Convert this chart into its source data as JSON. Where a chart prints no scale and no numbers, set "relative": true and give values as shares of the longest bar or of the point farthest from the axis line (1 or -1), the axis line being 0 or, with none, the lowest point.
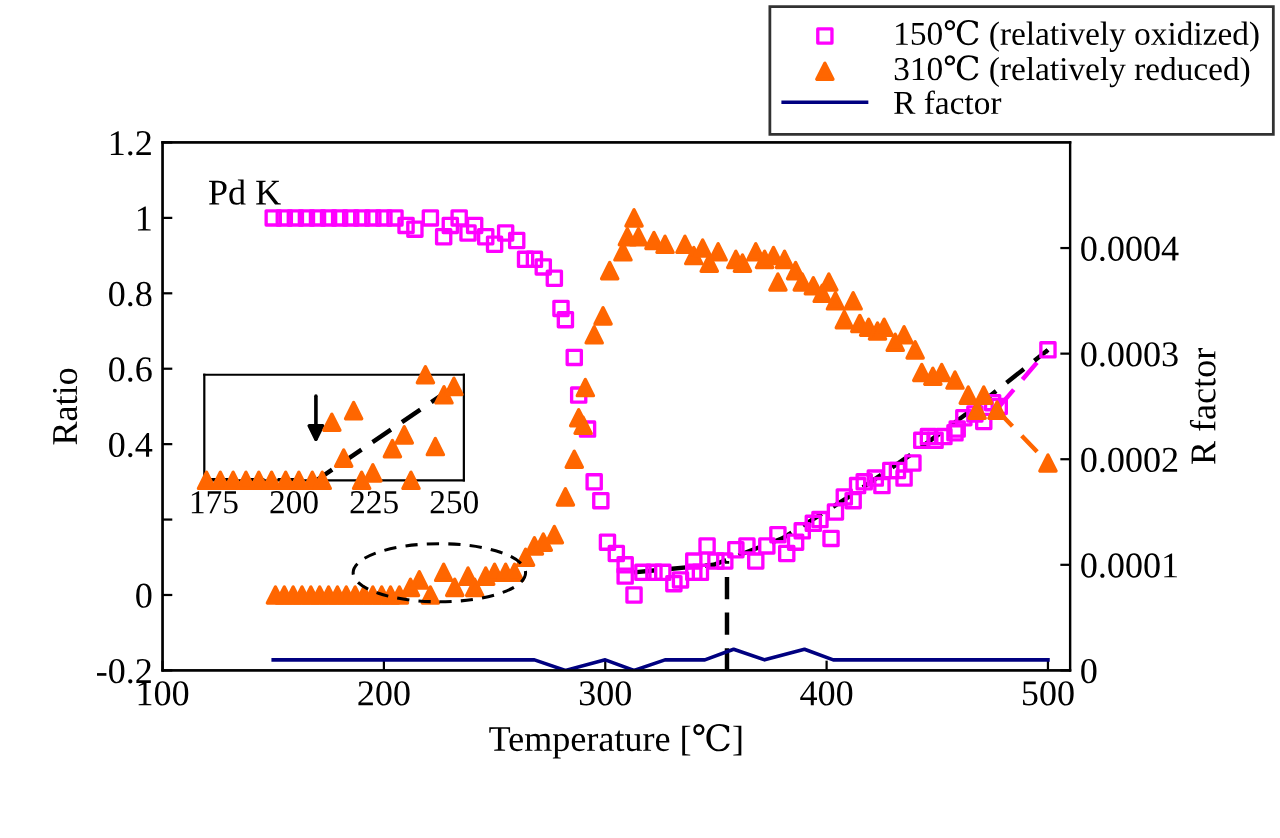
{
  "chart_data": [
    {
      "type": "scatter",
      "xlabel": "Temperature [℃]",
      "ylabel": "Ratio",
      "y2label": "R factor",
      "annotations": [
        "Pd K"
      ],
      "xlim": [
        100,
        510
      ],
      "xticks": [
        100,
        200,
        300,
        400,
        500
      ],
      "ylim": [
        -0.2,
        1.2
      ],
      "yticks": [
        -0.2,
        0,
        {
          "value": 0.2,
          "label": null
        },
        0.4,
        0.6,
        0.8,
        1,
        1.2
      ],
      "y2lim": [
        0,
        0.0005
      ],
      "y2ticks": [
        0,
        0.0001,
        0.0002,
        0.0003,
        0.0004
      ],
      "grid": false,
      "legend": "top right",
      "series": [
        {
          "name": "150℃ (relatively oxidized)",
          "type": "scatter",
          "marker": "square",
          "color": "#ff00ff",
          "x": [
            150,
            155,
            160,
            165,
            170,
            175,
            180,
            185,
            190,
            195,
            200,
            205,
            210,
            214,
            221,
            227,
            230,
            234,
            238,
            241,
            246,
            250,
            255,
            260,
            264,
            268,
            272,
            277,
            280,
            282,
            286,
            288,
            292,
            295,
            298,
            301,
            305,
            309,
            309,
            313,
            317,
            322,
            326,
            331,
            334,
            340,
            340,
            343,
            346,
            350,
            354,
            359,
            364,
            368,
            373,
            378,
            382,
            386,
            389,
            394,
            397,
            402,
            404,
            408,
            412,
            414,
            417,
            422,
            425,
            429,
            432,
            435,
            439,
            443,
            446,
            449,
            453,
            458,
            459,
            462,
            467,
            471,
            475,
            478,
            500
          ],
          "values": [
            1,
            1,
            1,
            1,
            1,
            1,
            1,
            1,
            1,
            1,
            1,
            1,
            0.98,
            0.97,
            1.0,
            0.95,
            0.98,
            1.0,
            0.96,
            0.98,
            0.95,
            0.93,
            0.96,
            0.94,
            0.89,
            0.89,
            0.87,
            0.84,
            0.76,
            0.73,
            0.63,
            0.53,
            0.44,
            0.3,
            0.25,
            0.14,
            0.11,
            0.08,
            0.05,
            0.0,
            0.06,
            0.06,
            0.06,
            0.03,
            0.04,
            0.06,
            0.09,
            0.06,
            0.13,
            0.09,
            0.09,
            0.12,
            0.13,
            0.09,
            0.13,
            0.16,
            0.11,
            0.14,
            0.17,
            0.19,
            0.2,
            0.15,
            0.22,
            0.26,
            0.25,
            0.29,
            0.3,
            0.31,
            0.29,
            0.33,
            0.33,
            0.31,
            0.35,
            0.41,
            0.42,
            0.41,
            0.42,
            0.43,
            0.44,
            0.47,
            0.48,
            0.46,
            0.51,
            0.5,
            0.65
          ]
        },
        {
          "name": "310℃ (relatively reduced)",
          "type": "scatter",
          "marker": "triangle",
          "color": "#ff6600",
          "x": [
            151,
            155,
            159,
            163,
            167,
            171,
            175,
            179,
            183,
            187,
            191,
            195,
            199,
            203,
            207,
            212,
            216,
            221,
            227,
            232,
            238,
            241,
            246,
            250,
            255,
            259,
            264,
            268,
            272,
            277,
            282,
            286,
            288,
            290,
            291,
            295,
            299,
            302,
            308,
            310,
            313,
            315,
            322,
            327,
            336,
            340,
            344,
            347,
            351,
            359,
            362,
            368,
            372,
            376,
            378,
            381,
            386,
            389,
            394,
            398,
            401,
            404,
            408,
            412,
            415,
            419,
            423,
            426,
            431,
            435,
            440,
            443,
            448,
            452,
            458,
            464,
            468,
            471,
            477,
            500
          ],
          "values": [
            0,
            0,
            0,
            0,
            0,
            0,
            0,
            0,
            0,
            0,
            0,
            0,
            0,
            0,
            0,
            0.02,
            0.04,
            0.0,
            0.06,
            0.02,
            0.05,
            0.02,
            0.05,
            0.06,
            0.06,
            0.06,
            0.1,
            0.13,
            0.14,
            0.16,
            0.26,
            0.36,
            0.47,
            0.45,
            0.55,
            0.69,
            0.74,
            0.86,
            0.91,
            0.95,
            1.0,
            0.95,
            0.94,
            0.93,
            0.93,
            0.9,
            0.92,
            0.88,
            0.91,
            0.89,
            0.88,
            0.91,
            0.89,
            0.9,
            0.83,
            0.89,
            0.86,
            0.83,
            0.82,
            0.8,
            0.83,
            0.78,
            0.73,
            0.78,
            0.72,
            0.71,
            0.7,
            0.71,
            0.67,
            0.69,
            0.65,
            0.59,
            0.58,
            0.59,
            0.57,
            0.53,
            0.49,
            0.53,
            0.49,
            0.35
          ]
        },
        {
          "name": "R factor",
          "type": "line",
          "axis": "y2",
          "color": "#000080",
          "x": [
            150,
            162,
            174,
            192,
            207,
            222,
            237,
            252,
            268,
            282,
            300,
            313,
            327,
            345,
            358,
            372,
            390,
            403,
            417,
            448,
            477,
            500
          ],
          "values": [
            1e-05,
            1e-05,
            1e-05,
            1e-05,
            1e-05,
            1e-05,
            1e-05,
            1e-05,
            1e-05,
            0,
            1e-05,
            0,
            1e-05,
            1e-05,
            2e-05,
            1e-05,
            2e-05,
            1e-05,
            1e-05,
            1e-05,
            1e-05,
            1e-05
          ]
        },
        {
          "type": "line",
          "line_style": "dashed",
          "color": "#ff00ff",
          "x": [
            478,
            500
          ],
          "values": [
            0.5,
            0.65
          ]
        },
        {
          "type": "line",
          "line_style": "dashed",
          "color": "#ff6600",
          "x": [
            477,
            500
          ],
          "values": [
            0.49,
            0.35
          ]
        },
        {
          "type": "line",
          "line_style": "dashed",
          "color": "#000000",
          "x": [
            313,
            349,
            380,
            410,
            440,
            470,
            500
          ],
          "values": [
            0.06,
            0.08,
            0.15,
            0.26,
            0.38,
            0.51,
            0.65
          ]
        },
        {
          "type": "line",
          "line_style": "dashed",
          "color": "#000000",
          "x": [
            355,
            355
          ],
          "values": [
            -0.2,
            0.09
          ]
        }
      ]
    },
    {
      "type": "scatter",
      "relative": true,
      "tick_labels": "x",
      "xlim": [
        172,
        253
      ],
      "xticks": [
        175,
        200,
        225,
        250
      ],
      "grid": false,
      "series": [
        {
          "type": "scatter",
          "marker": "triangle",
          "color": "#ff6600",
          "x": [
            172.7,
            177,
            181,
            185,
            189,
            193,
            197.4,
            201.5,
            205.7,
            208.8,
            211.8,
            215.5,
            218.6,
            221.1,
            224.6,
            230.7,
            234.4,
            236.5,
            241,
            244.1,
            246.8,
            249.9
          ],
          "values": [
            0,
            0,
            0,
            0,
            0,
            0,
            0,
            0,
            0,
            0,
            0.55,
            0.21,
            0.66,
            0,
            0.07,
            0.3,
            0.43,
            0,
            1.0,
            0.32,
            0.81,
            0.89
          ]
        },
        {
          "type": "line",
          "line_style": "dashed",
          "color": "#000000",
          "x": [
            172.7,
            207,
            252
          ],
          "values": [
            0,
            0,
            0.93
          ]
        }
      ]
    }
  ]
}
